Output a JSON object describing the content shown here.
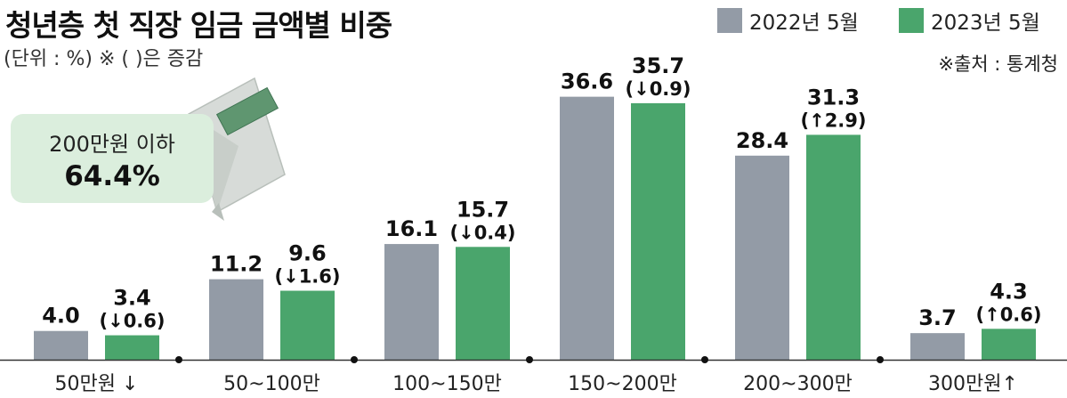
{
  "title": "청년층 첫 직장 임금 금액별 비중",
  "subtitle": "(단위 : %)  ※ ( )은 증감",
  "source": "※출처 : 통계청",
  "callout": {
    "label": "200만원 이하",
    "value": "64.4%"
  },
  "colors": {
    "series_2022": "#939ba6",
    "series_2023": "#4aa56c",
    "callout_bg": "#dbeedd"
  },
  "chart_data": {
    "type": "bar",
    "title": "청년층 첫 직장 임금 금액별 비중",
    "ylabel": "",
    "ylim": [
      0,
      40
    ],
    "categories": [
      "50만원 ↓",
      "50~100만",
      "100~150만",
      "150~200만",
      "200~300만",
      "300만원↑"
    ],
    "series": [
      {
        "name": "2022년 5월",
        "values": [
          4.0,
          11.2,
          16.1,
          36.6,
          28.4,
          3.7
        ],
        "labels": [
          "4.0",
          "11.2",
          "16.1",
          "36.6",
          "28.4",
          "3.7"
        ]
      },
      {
        "name": "2023년 5월",
        "values": [
          3.4,
          9.6,
          15.7,
          35.7,
          31.3,
          4.3
        ],
        "labels": [
          "3.4",
          "9.6",
          "15.7",
          "35.7",
          "31.3",
          "4.3"
        ]
      }
    ],
    "changes": [
      "(↓0.6)",
      "(↓1.6)",
      "(↓0.4)",
      "(↓0.9)",
      "(↑2.9)",
      "(↑0.6)"
    ],
    "legend_position": "top-right",
    "grid": false
  }
}
